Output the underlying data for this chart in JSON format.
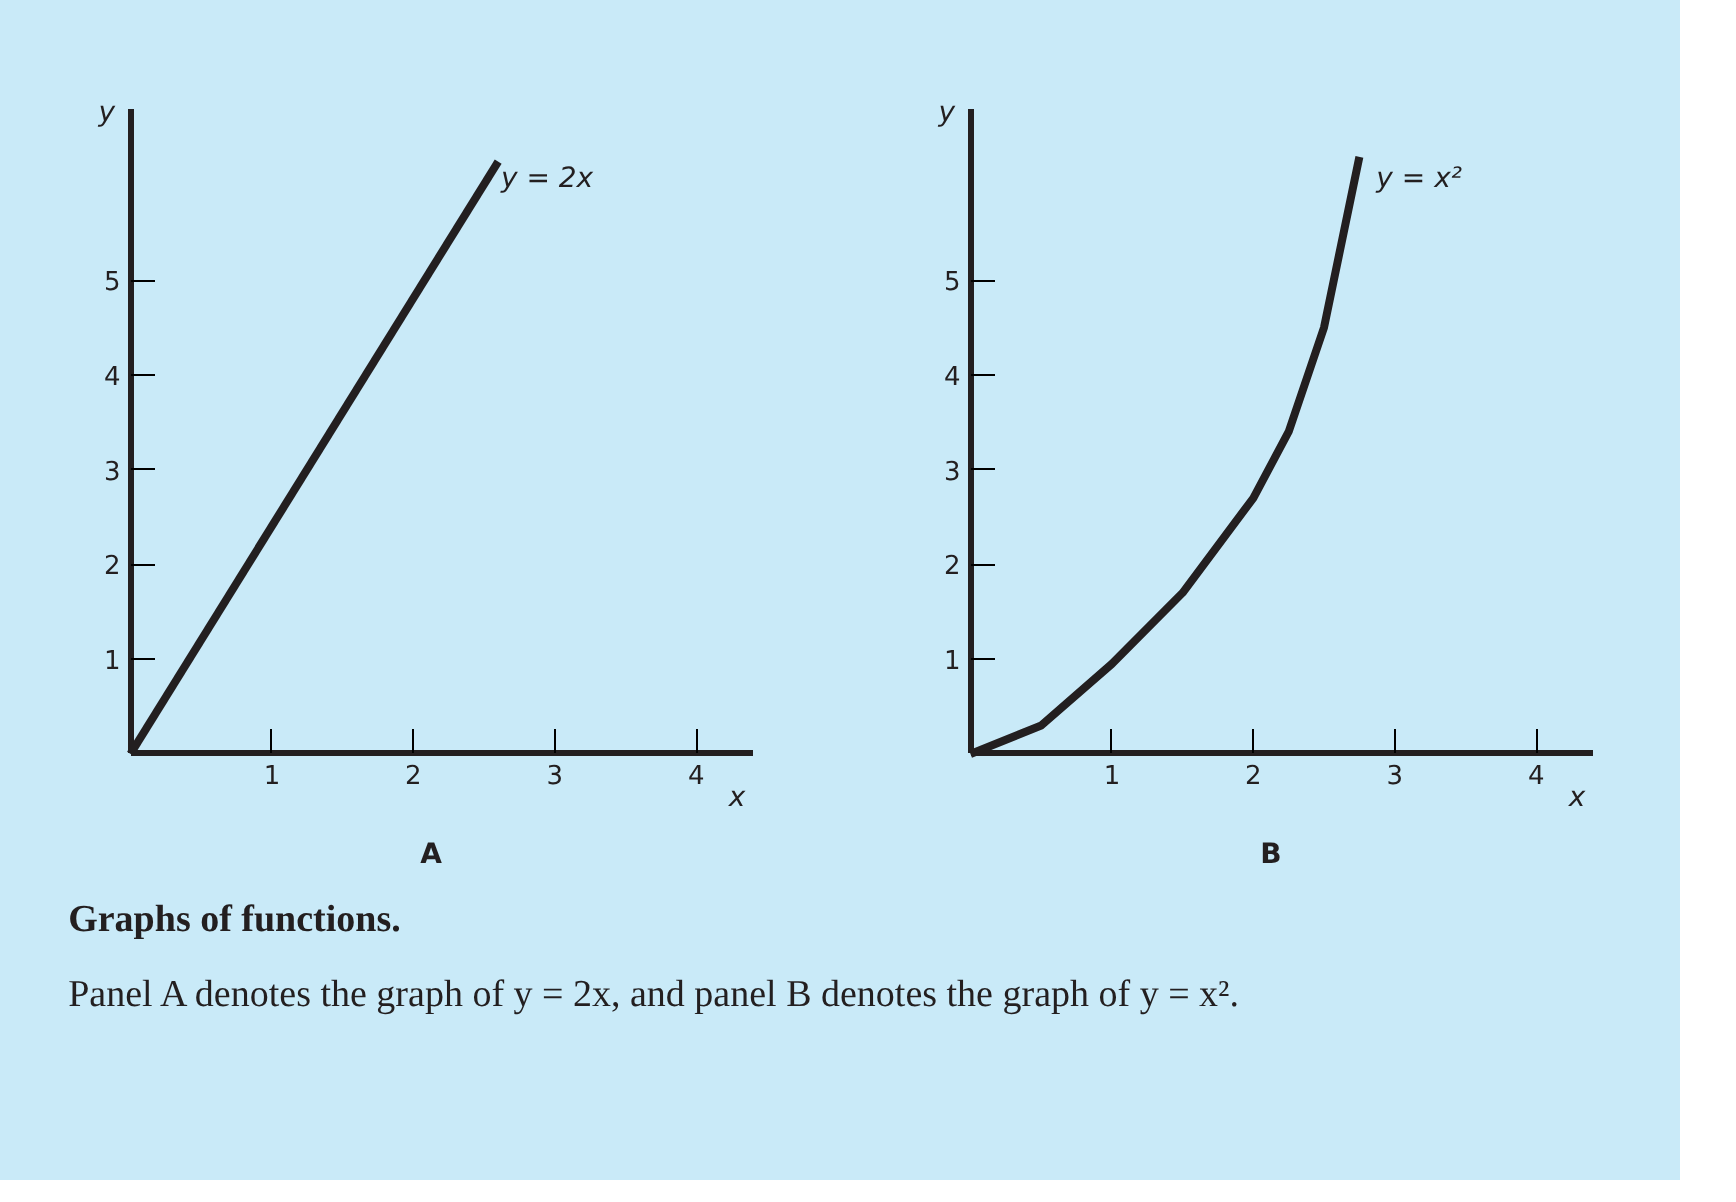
{
  "chart_data": [
    {
      "type": "line",
      "title": "A",
      "xlabel": "x",
      "ylabel": "y",
      "xlim": [
        0,
        4.4
      ],
      "ylim": [
        0,
        6.8
      ],
      "xticks": [
        1,
        2,
        3,
        4
      ],
      "yticks": [
        1,
        2,
        3,
        4,
        5
      ],
      "grid": false,
      "marker": "none",
      "line_style": "solid",
      "series": [
        {
          "color": "#231f20",
          "x": [
            0,
            2.6
          ],
          "values": [
            0,
            6.25
          ]
        }
      ],
      "annotations": [
        {
          "text": "y = 2x",
          "x": 2.45,
          "y": 5.9
        }
      ]
    },
    {
      "type": "line",
      "title": "B",
      "xlabel": "x",
      "ylabel": "y",
      "xlim": [
        0,
        4.4
      ],
      "ylim": [
        0,
        6.8
      ],
      "xticks": [
        1,
        2,
        3,
        4
      ],
      "yticks": [
        1,
        2,
        3,
        4,
        5
      ],
      "grid": false,
      "marker": "none",
      "line_style": "solid",
      "series": [
        {
          "color": "#231f20",
          "x": [
            0,
            0.5,
            1,
            1.5,
            2,
            2.25,
            2.5,
            2.75
          ],
          "values": [
            0,
            0.3,
            0.95,
            1.7,
            2.7,
            3.4,
            4.5,
            6.3
          ]
        }
      ],
      "annotations": [
        {
          "text": "y = x²",
          "x": 2.7,
          "y": 5.9
        }
      ]
    },
    {
      "type": "other",
      "title": "Graphs of functions.",
      "annotations": [
        "Panel A denotes the graph of y = 2x, and panel B denotes the graph of y = x²."
      ]
    }
  ]
}
